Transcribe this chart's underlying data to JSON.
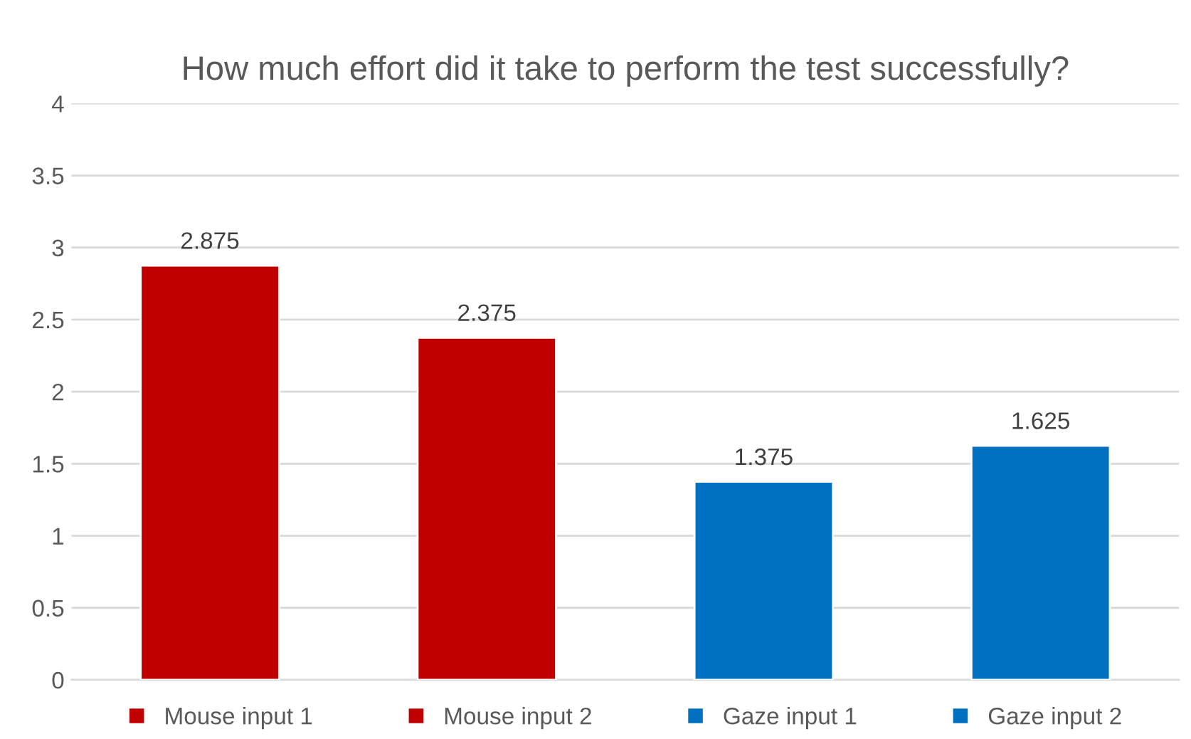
{
  "chart_data": {
    "type": "bar",
    "title": "How much effort did it take to perform the test successfully?",
    "categories": [
      null
    ],
    "series": [
      {
        "name": "Mouse input 1",
        "color": "#c00000",
        "values": [
          2.875
        ]
      },
      {
        "name": "Mouse input 2",
        "color": "#c00000",
        "values": [
          2.375
        ]
      },
      {
        "name": "Gaze input 1",
        "color": "#0070c0",
        "values": [
          1.375
        ]
      },
      {
        "name": "Gaze input 2",
        "color": "#0070c0",
        "values": [
          1.625
        ]
      }
    ],
    "ylim": [
      0,
      4
    ],
    "yticks": [
      0,
      0.5,
      1,
      1.5,
      2,
      2.5,
      3,
      3.5,
      4
    ],
    "grid": "y",
    "legend": "bottom",
    "data_labels": true
  }
}
